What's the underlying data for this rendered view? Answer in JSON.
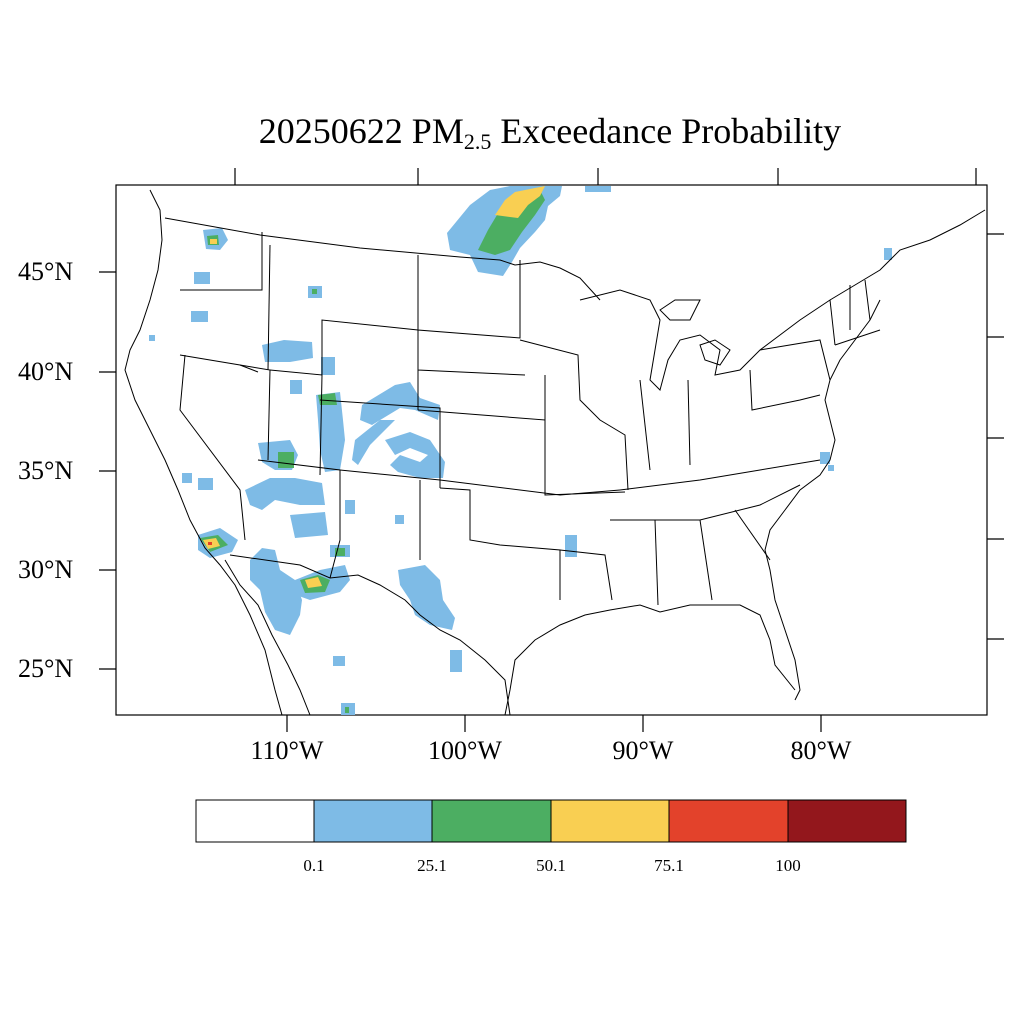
{
  "title": {
    "prefix": "20250622 PM",
    "subscript": "2.5",
    "suffix": " Exceedance Probability"
  },
  "lat_labels": [
    "45°N",
    "40°N",
    "35°N",
    "30°N",
    "25°N"
  ],
  "lon_labels": [
    "110°W",
    "100°W",
    "90°W",
    "80°W"
  ],
  "legend": {
    "boundaries": [
      "0.1",
      "25.1",
      "50.1",
      "75.1",
      "100"
    ],
    "colors": [
      "#ffffff",
      "#7ebbe6",
      "#4cae62",
      "#f9cf52",
      "#e3422b",
      "#93171c"
    ]
  },
  "map_layers": [
    "coastline",
    "country-border",
    "state-borders",
    "probability-shading"
  ]
}
